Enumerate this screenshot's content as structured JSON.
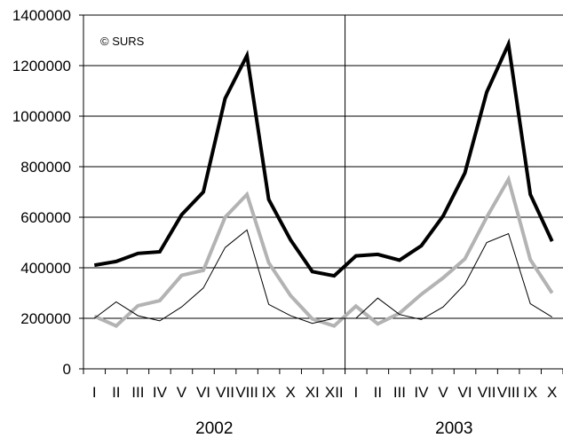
{
  "chart_data": {
    "type": "line",
    "annotation": "© SURS",
    "ylim": [
      0,
      1400000
    ],
    "yticks": [
      "0",
      "200000",
      "400000",
      "600000",
      "800000",
      "1000000",
      "1200000",
      "1400000"
    ],
    "grid": true,
    "legend": "none",
    "groups": [
      "2002",
      "2003"
    ],
    "categories": [
      "I",
      "II",
      "III",
      "IV",
      "V",
      "VI",
      "VII",
      "VIII",
      "IX",
      "X",
      "XI",
      "XII",
      "I",
      "II",
      "III",
      "IV",
      "V",
      "VI",
      "VII",
      "VIII",
      "IX",
      "X"
    ],
    "series": [
      {
        "color": "#000000",
        "width": 4,
        "values": [
          410000,
          425000,
          457000,
          463000,
          610000,
          700000,
          1070000,
          1240000,
          670000,
          510000,
          385000,
          368000,
          447000,
          453000,
          430000,
          487000,
          605000,
          775000,
          1095000,
          1285000,
          690000,
          505000
        ]
      },
      {
        "color": "#b3b3b3",
        "width": 4,
        "values": [
          208000,
          170000,
          250000,
          270000,
          370000,
          390000,
          600000,
          690000,
          420000,
          290000,
          198000,
          170000,
          248000,
          178000,
          220000,
          295000,
          360000,
          435000,
          600000,
          750000,
          432000,
          300000
        ]
      },
      {
        "color": "#000000",
        "width": 1,
        "values": [
          200000,
          265000,
          210000,
          190000,
          245000,
          320000,
          480000,
          550000,
          255000,
          210000,
          180000,
          200000,
          200000,
          280000,
          215000,
          195000,
          245000,
          335000,
          500000,
          535000,
          258000,
          205000
        ]
      }
    ]
  }
}
